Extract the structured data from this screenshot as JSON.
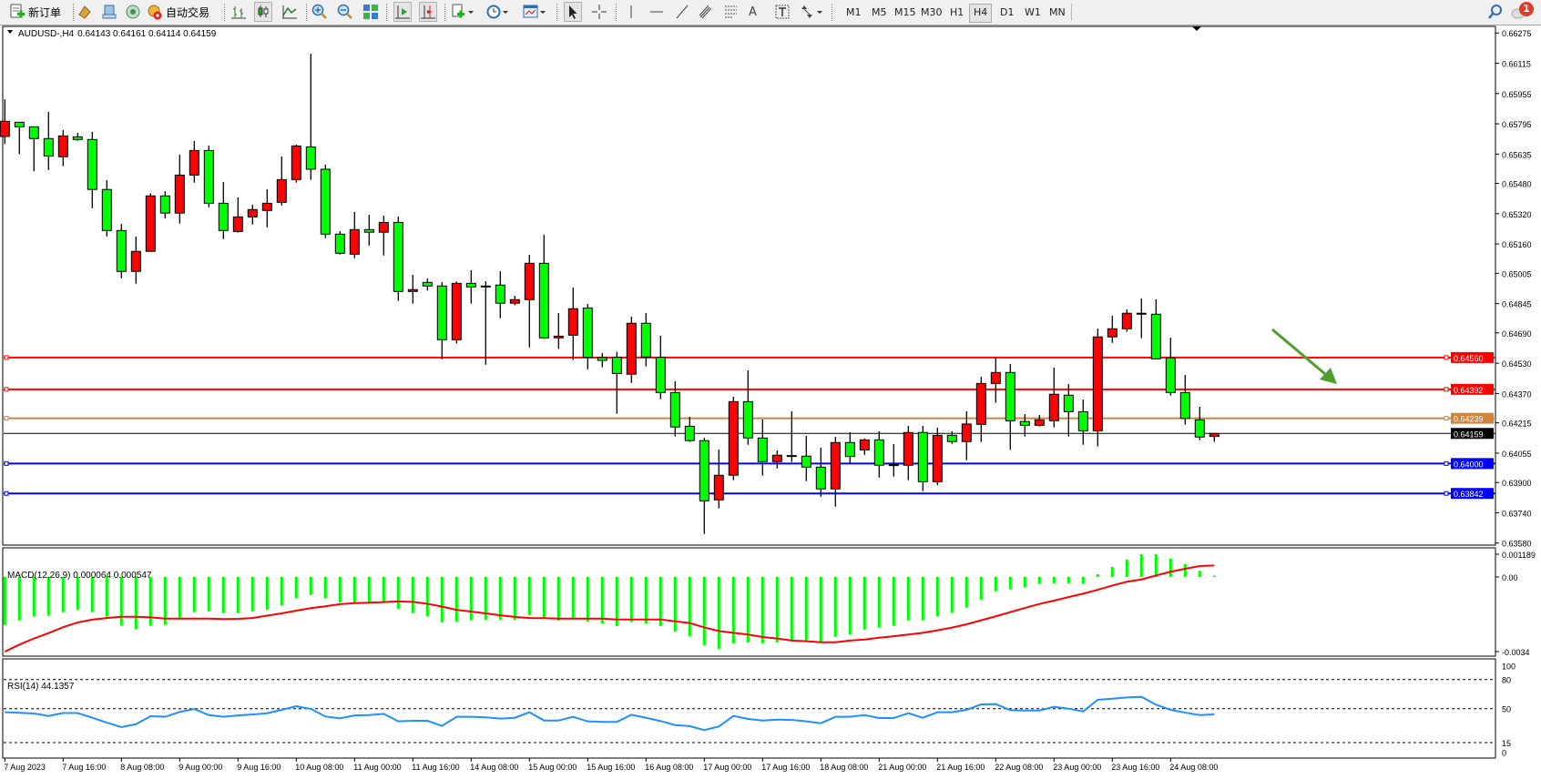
{
  "toolbar": {
    "new_order_label": "新订单",
    "auto_trading_label": "自动交易",
    "icons": [
      "new-order-icon",
      "market-watch-icon",
      "navigator-icon",
      "signals-icon",
      "auto-trading-icon",
      "bar-chart-icon",
      "candlestick-icon",
      "line-chart-icon",
      "zoom-in-icon",
      "zoom-out-icon",
      "tile-windows-icon",
      "auto-scroll-icon",
      "chart-shift-icon",
      "indicators-icon",
      "periodicity-icon",
      "templates-icon",
      "cursor-icon",
      "crosshair-icon",
      "vertical-line-icon",
      "horizontal-line-icon",
      "trendline-icon",
      "equidistant-channel-icon",
      "fibonacci-icon",
      "text-icon",
      "text-label-icon",
      "arrows-icon",
      "search-icon",
      "notifications-icon"
    ],
    "timeframes": [
      "M1",
      "M5",
      "M15",
      "M30",
      "H1",
      "H4",
      "D1",
      "W1",
      "MN"
    ],
    "active_timeframe": "H4",
    "notification_count": "1"
  },
  "chart_data": [
    {
      "type": "candlestick",
      "title": "AUDUSD-,H4",
      "ohlc_label": "0.64143 0.64161 0.64114 0.64159",
      "symbol": "AUDUSD-",
      "timeframe": "H4",
      "colors": {
        "bull": "#ff0000",
        "bear": "#00ff00",
        "outline": "#000000"
      },
      "ylim": [
        0.6358,
        0.66275
      ],
      "y_ticks": [
        "0.66275",
        "0.66115",
        "0.65955",
        "0.65795",
        "0.65635",
        "0.65480",
        "0.65320",
        "0.65160",
        "0.65005",
        "0.64845",
        "0.64690",
        "0.64530",
        "0.64370",
        "0.64215",
        "0.64055",
        "0.63900",
        "0.63740",
        "0.63580"
      ],
      "x_ticks": [
        "7 Aug 2023",
        "7 Aug 16:00",
        "8 Aug 08:00",
        "9 Aug 00:00",
        "9 Aug 16:00",
        "10 Aug 08:00",
        "11 Aug 00:00",
        "11 Aug 16:00",
        "14 Aug 08:00",
        "15 Aug 00:00",
        "15 Aug 16:00",
        "16 Aug 08:00",
        "17 Aug 00:00",
        "17 Aug 16:00",
        "18 Aug 08:00",
        "21 Aug 00:00",
        "21 Aug 16:00",
        "22 Aug 08:00",
        "23 Aug 00:00",
        "23 Aug 16:00",
        "24 Aug 08:00"
      ],
      "ohlc_fields": [
        "open",
        "high",
        "low",
        "close"
      ],
      "candles": [
        [
          0.65728,
          0.65924,
          0.65688,
          0.65808
        ],
        [
          0.65803,
          0.65803,
          0.65635,
          0.65779
        ],
        [
          0.65779,
          0.65779,
          0.65544,
          0.65717
        ],
        [
          0.65717,
          0.65858,
          0.65551,
          0.65625
        ],
        [
          0.65621,
          0.65762,
          0.65571,
          0.65731
        ],
        [
          0.65726,
          0.65747,
          0.65705,
          0.65712
        ],
        [
          0.65712,
          0.65752,
          0.65349,
          0.65448
        ],
        [
          0.65448,
          0.65497,
          0.652,
          0.65231
        ],
        [
          0.65231,
          0.65266,
          0.64979,
          0.65015
        ],
        [
          0.65015,
          0.65199,
          0.6495,
          0.65121
        ],
        [
          0.65121,
          0.65428,
          0.65121,
          0.65414
        ],
        [
          0.65414,
          0.65439,
          0.65295,
          0.65323
        ],
        [
          0.65323,
          0.65632,
          0.65268,
          0.65524
        ],
        [
          0.65524,
          0.65704,
          0.65484,
          0.65654
        ],
        [
          0.65654,
          0.6568,
          0.65354,
          0.65375
        ],
        [
          0.65375,
          0.65487,
          0.65186,
          0.65231
        ],
        [
          0.65226,
          0.65406,
          0.6522,
          0.65303
        ],
        [
          0.65303,
          0.65367,
          0.65263,
          0.65342
        ],
        [
          0.65337,
          0.65449,
          0.65248,
          0.65375
        ],
        [
          0.6538,
          0.65622,
          0.65364,
          0.655
        ],
        [
          0.655,
          0.65685,
          0.65484,
          0.65678
        ],
        [
          0.65673,
          0.66165,
          0.65499,
          0.65555
        ],
        [
          0.65555,
          0.65579,
          0.65191,
          0.65212
        ],
        [
          0.65212,
          0.65228,
          0.65104,
          0.65111
        ],
        [
          0.65106,
          0.65329,
          0.65085,
          0.65236
        ],
        [
          0.65236,
          0.65314,
          0.65152,
          0.65222
        ],
        [
          0.65222,
          0.6531,
          0.65099,
          0.65274
        ],
        [
          0.65274,
          0.65305,
          0.64859,
          0.64909
        ],
        [
          0.64909,
          0.64997,
          0.64845,
          0.64919
        ],
        [
          0.64957,
          0.64978,
          0.64914,
          0.64938
        ],
        [
          0.64938,
          0.64959,
          0.64551,
          0.64654
        ],
        [
          0.64654,
          0.64962,
          0.64635,
          0.64952
        ],
        [
          0.64952,
          0.65021,
          0.64845,
          0.64933
        ],
        [
          0.64938,
          0.64963,
          0.64522,
          0.64933
        ],
        [
          0.64943,
          0.65016,
          0.64768,
          0.64847
        ],
        [
          0.64847,
          0.64886,
          0.64837,
          0.64866
        ],
        [
          0.64866,
          0.65103,
          0.64614,
          0.65058
        ],
        [
          0.65058,
          0.65209,
          0.64659,
          0.64664
        ],
        [
          0.64664,
          0.64795,
          0.64606,
          0.64673
        ],
        [
          0.64678,
          0.6493,
          0.64547,
          0.64818
        ],
        [
          0.64822,
          0.64843,
          0.64498,
          0.64561
        ],
        [
          0.6456,
          0.64584,
          0.64508,
          0.64545
        ],
        [
          0.64561,
          0.6459,
          0.64263,
          0.64476
        ],
        [
          0.64472,
          0.64776,
          0.64426,
          0.64741
        ],
        [
          0.64741,
          0.64795,
          0.64513,
          0.64563
        ],
        [
          0.64561,
          0.64675,
          0.6434,
          0.64375
        ],
        [
          0.64375,
          0.64435,
          0.64143,
          0.64193
        ],
        [
          0.64197,
          0.64247,
          0.64114,
          0.64121
        ],
        [
          0.64121,
          0.64136,
          0.63628,
          0.63803
        ],
        [
          0.63808,
          0.64074,
          0.63763,
          0.63938
        ],
        [
          0.63938,
          0.64353,
          0.63912,
          0.64327
        ],
        [
          0.64327,
          0.64492,
          0.64099,
          0.64135
        ],
        [
          0.64135,
          0.64233,
          0.63936,
          0.6401
        ],
        [
          0.6401,
          0.64069,
          0.63974,
          0.64044
        ],
        [
          0.64042,
          0.64276,
          0.64008,
          0.64039
        ],
        [
          0.64039,
          0.64146,
          0.63907,
          0.63981
        ],
        [
          0.63981,
          0.64084,
          0.63825,
          0.63866
        ],
        [
          0.63866,
          0.64141,
          0.63772,
          0.64111
        ],
        [
          0.64111,
          0.64165,
          0.64,
          0.64037
        ],
        [
          0.64072,
          0.64132,
          0.64046,
          0.64125
        ],
        [
          0.64125,
          0.6417,
          0.63926,
          0.63991
        ],
        [
          0.63994,
          0.64103,
          0.63931,
          0.63989
        ],
        [
          0.63991,
          0.64199,
          0.63912,
          0.64164
        ],
        [
          0.64164,
          0.64199,
          0.63854,
          0.63904
        ],
        [
          0.63904,
          0.64189,
          0.63886,
          0.64149
        ],
        [
          0.64149,
          0.6417,
          0.64104,
          0.64116
        ],
        [
          0.64116,
          0.64276,
          0.64018,
          0.64209
        ],
        [
          0.64207,
          0.64459,
          0.64114,
          0.64423
        ],
        [
          0.64423,
          0.64558,
          0.64321,
          0.64481
        ],
        [
          0.64481,
          0.64526,
          0.64072,
          0.64226
        ],
        [
          0.64222,
          0.64261,
          0.64143,
          0.64202
        ],
        [
          0.64202,
          0.64257,
          0.64196,
          0.64231
        ],
        [
          0.64226,
          0.64507,
          0.64191,
          0.64366
        ],
        [
          0.64361,
          0.6442,
          0.64143,
          0.64274
        ],
        [
          0.64274,
          0.64338,
          0.64099,
          0.64173
        ],
        [
          0.64173,
          0.64713,
          0.6409,
          0.64669
        ],
        [
          0.64669,
          0.64781,
          0.64638,
          0.64712
        ],
        [
          0.64712,
          0.64814,
          0.64696,
          0.64794
        ],
        [
          0.64794,
          0.64872,
          0.64662,
          0.64789
        ],
        [
          0.64789,
          0.64867,
          0.64553,
          0.64553
        ],
        [
          0.64558,
          0.64665,
          0.64359,
          0.64375
        ],
        [
          0.64375,
          0.64468,
          0.64205,
          0.64239
        ],
        [
          0.64231,
          0.643,
          0.64123,
          0.6414
        ],
        [
          0.64143,
          0.64161,
          0.64114,
          0.64159
        ]
      ],
      "horizontal_lines": [
        {
          "price": 0.6456,
          "label": "0.64560",
          "color": "#ff0000"
        },
        {
          "price": 0.64392,
          "label": "0.64392",
          "color": "#ff0000"
        },
        {
          "price": 0.64239,
          "label": "0.64239",
          "color": "#cd853f"
        },
        {
          "price": 0.64159,
          "label": "0.64159",
          "color": "#000000",
          "bid_line": true
        },
        {
          "price": 0.64,
          "label": "0.64000",
          "color": "#0000ff"
        },
        {
          "price": 0.63842,
          "label": "0.63842",
          "color": "#0000ff"
        }
      ],
      "annotation": {
        "type": "arrow",
        "direction": "down-right",
        "color": "#4f9e2d"
      }
    },
    {
      "type": "bar+line",
      "title": "MACD(12,26,9) 0.000064 0.000547",
      "y_ticks": [
        "0.001189",
        "0.00",
        "-0.0034"
      ],
      "ylim": [
        -0.0034,
        0.001189
      ],
      "colors": {
        "histogram": "#00ff00",
        "signal": "#ff0000"
      },
      "histogram": [
        -0.00229,
        -0.00207,
        -0.0019,
        -0.00185,
        -0.00168,
        -0.00157,
        -0.00168,
        -0.0019,
        -0.00233,
        -0.0025,
        -0.00233,
        -0.00229,
        -0.00197,
        -0.00168,
        -0.00164,
        -0.00173,
        -0.00173,
        -0.00164,
        -0.00157,
        -0.00135,
        -0.001,
        -0.00086,
        -0.001,
        -0.00122,
        -0.00125,
        -0.00125,
        -0.0012,
        -0.00152,
        -0.00172,
        -0.00187,
        -0.00216,
        -0.00213,
        -0.00207,
        -0.00204,
        -0.00204,
        -0.00204,
        -0.00183,
        -0.00197,
        -0.00209,
        -0.00197,
        -0.00213,
        -0.00222,
        -0.00235,
        -0.00216,
        -0.00222,
        -0.00235,
        -0.00261,
        -0.00283,
        -0.00326,
        -0.00343,
        -0.00317,
        -0.00313,
        -0.00317,
        -0.00313,
        -0.00304,
        -0.00304,
        -0.00312,
        -0.00286,
        -0.00274,
        -0.00251,
        -0.00242,
        -0.00233,
        -0.00207,
        -0.00207,
        -0.00187,
        -0.0017,
        -0.00146,
        -0.00109,
        -0.00068,
        -0.00059,
        -0.00051,
        -0.00033,
        -0.0003,
        -0.0003,
        -0.00033,
        0.00013,
        0.00048,
        0.00083,
        0.00109,
        0.00109,
        0.00087,
        0.00061,
        0.0003,
        6.4e-05
      ],
      "signal": [
        -0.00357,
        -0.00323,
        -0.00294,
        -0.00268,
        -0.0024,
        -0.00217,
        -0.00204,
        -0.00196,
        -0.0019,
        -0.0019,
        -0.00193,
        -0.00199,
        -0.00199,
        -0.00199,
        -0.00199,
        -0.00201,
        -0.002,
        -0.00196,
        -0.00185,
        -0.00174,
        -0.00161,
        -0.00149,
        -0.0014,
        -0.0013,
        -0.00125,
        -0.00123,
        -0.0012,
        -0.00117,
        -0.00119,
        -0.00128,
        -0.00142,
        -0.00157,
        -0.00165,
        -0.00174,
        -0.00183,
        -0.00191,
        -0.00196,
        -0.00197,
        -0.00199,
        -0.00199,
        -0.00199,
        -0.00199,
        -0.00203,
        -0.00203,
        -0.00203,
        -0.00203,
        -0.00212,
        -0.0022,
        -0.00241,
        -0.00258,
        -0.00267,
        -0.00275,
        -0.00287,
        -0.00294,
        -0.00304,
        -0.00307,
        -0.00312,
        -0.00312,
        -0.00304,
        -0.00299,
        -0.0029,
        -0.00283,
        -0.00275,
        -0.00267,
        -0.00255,
        -0.00242,
        -0.00226,
        -0.00207,
        -0.00188,
        -0.00168,
        -0.00148,
        -0.00129,
        -0.00113,
        -0.00096,
        -0.0008,
        -0.00061,
        -0.00041,
        -0.00023,
        -0.00012,
        7e-05,
        0.00025,
        0.00039,
        0.00052,
        0.000547
      ]
    },
    {
      "type": "line",
      "title": "RSI(14) 44.1357",
      "y_ticks": [
        "100",
        "80",
        "50",
        "15",
        "0"
      ],
      "levels": [
        80,
        50,
        15
      ],
      "ylim": [
        0,
        100
      ],
      "colors": {
        "line": "#1e90ff"
      },
      "values": [
        46.3,
        45.7,
        45,
        42.5,
        45.5,
        45.5,
        40.6,
        35.6,
        31,
        34,
        42.2,
        41.6,
        46.6,
        49.7,
        43.4,
        41.6,
        43,
        44,
        45.3,
        48.8,
        52.5,
        49.7,
        41.9,
        40,
        43,
        43.4,
        44.7,
        36.9,
        37.5,
        37.5,
        32.2,
        41.6,
        41.6,
        41,
        39.7,
        40.6,
        46.3,
        37.8,
        37.8,
        41.6,
        36.9,
        36.3,
        36.3,
        43.7,
        40.6,
        37.2,
        33.1,
        32,
        27.9,
        31.6,
        42.5,
        39.4,
        37.8,
        38.7,
        38.4,
        36.9,
        35,
        41.6,
        41.6,
        43.4,
        40.3,
        40.3,
        45.3,
        40.6,
        46.3,
        46.3,
        48.8,
        54.4,
        54.7,
        48.4,
        48.1,
        48.1,
        51.9,
        50,
        47.2,
        59.1,
        60.3,
        61.6,
        62.2,
        54.1,
        48.8,
        45.9,
        43.4,
        44.1357
      ]
    }
  ]
}
